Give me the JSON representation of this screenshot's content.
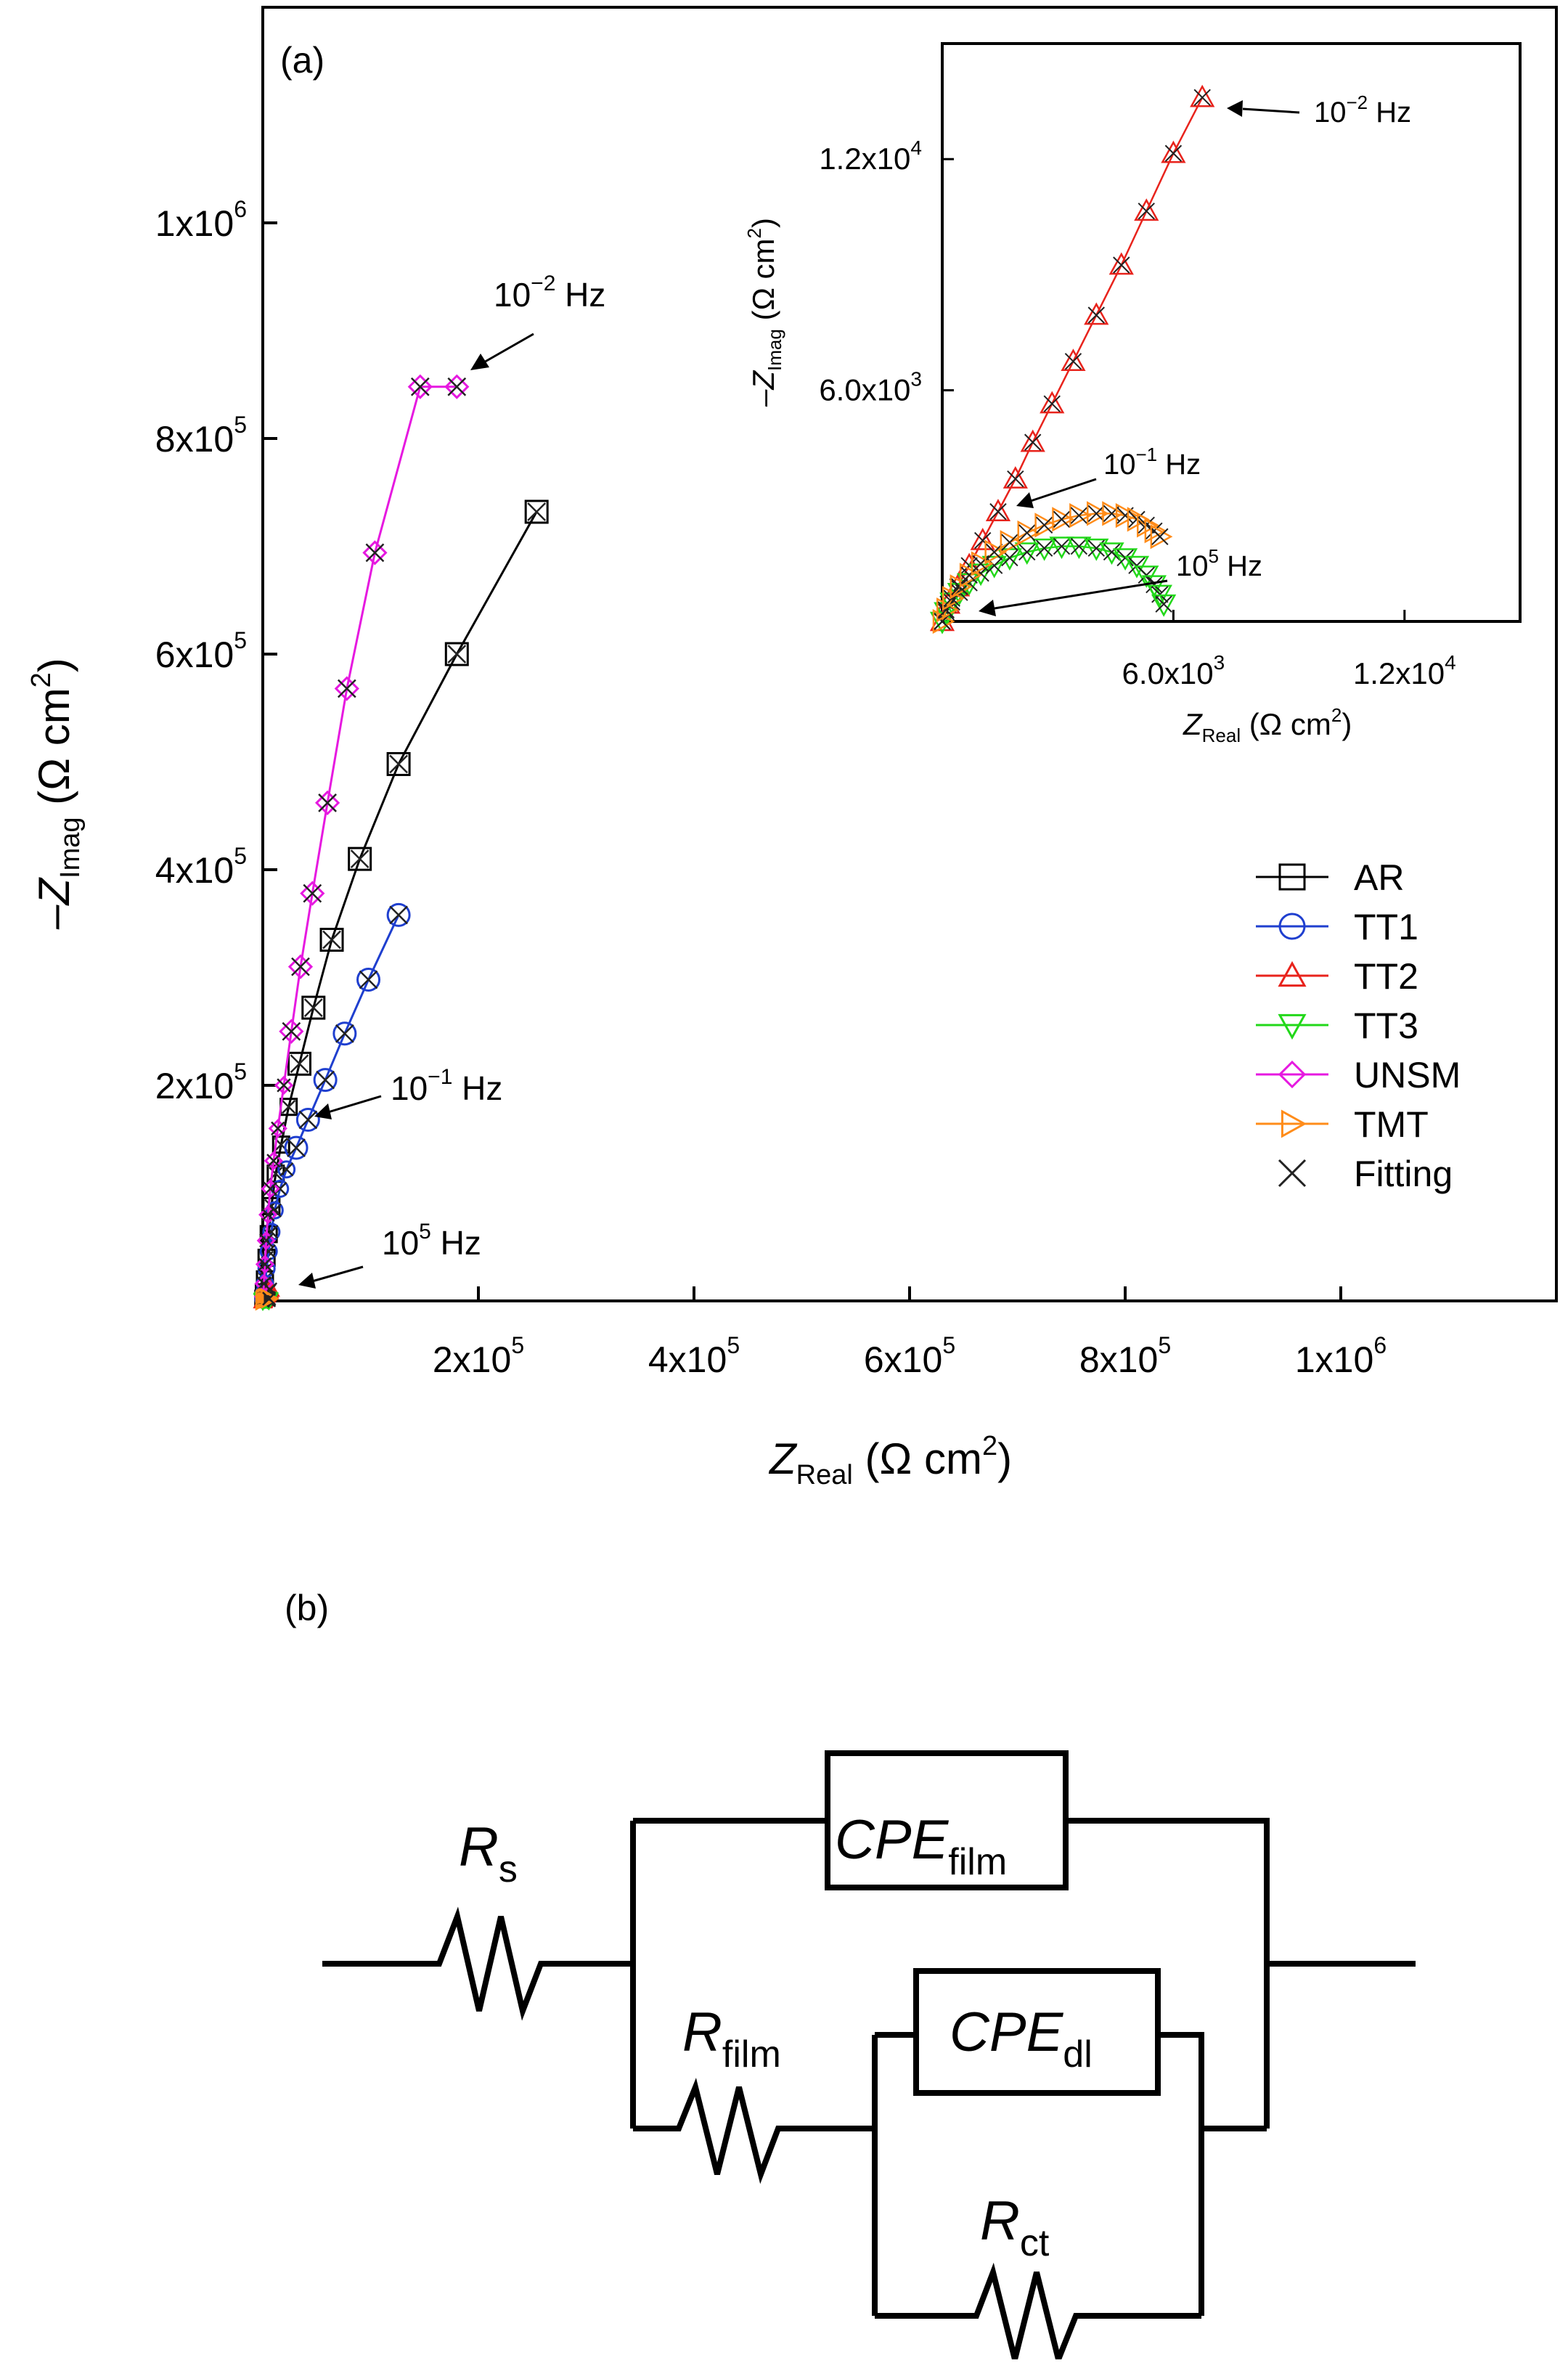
{
  "panel_a_label": "(a)",
  "panel_b_label": "(b)",
  "chart_data": [
    {
      "type": "scatter",
      "name": "main",
      "xlabel": {
        "main": "Z",
        "sub": "Real",
        "unit": " (Ω cm",
        "sup": "2",
        "close": ")"
      },
      "ylabel": {
        "main": "–Z",
        "sub": "Imag",
        "unit": " (Ω cm",
        "sup": "2",
        "close": ")"
      },
      "xlim": [
        0,
        1200000
      ],
      "ylim": [
        0,
        1200000
      ],
      "x_ticks": [
        {
          "value": 200000,
          "mant": "2x10",
          "exp": "5"
        },
        {
          "value": 400000,
          "mant": "4x10",
          "exp": "5"
        },
        {
          "value": 600000,
          "mant": "6x10",
          "exp": "5"
        },
        {
          "value": 800000,
          "mant": "8x10",
          "exp": "5"
        },
        {
          "value": 1000000,
          "mant": "1x10",
          "exp": "6"
        }
      ],
      "y_ticks": [
        {
          "value": 200000,
          "mant": "2x10",
          "exp": "5"
        },
        {
          "value": 400000,
          "mant": "4x10",
          "exp": "5"
        },
        {
          "value": 600000,
          "mant": "6x10",
          "exp": "5"
        },
        {
          "value": 800000,
          "mant": "8x10",
          "exp": "5"
        },
        {
          "value": 1000000,
          "mant": "1x10",
          "exp": "6"
        }
      ],
      "series": [
        {
          "name": "AR",
          "color": "#000000",
          "marker": "square",
          "x": [
            500,
            1000,
            2000,
            3500,
            5500,
            8000,
            12000,
            17000,
            24000,
            34000,
            47000,
            64000,
            90000,
            126000,
            180000,
            254000
          ],
          "y": [
            2000,
            8000,
            20000,
            40000,
            62000,
            88000,
            118000,
            145000,
            180000,
            220000,
            272000,
            335000,
            410000,
            498000,
            600000,
            732000
          ]
        },
        {
          "name": "TT1",
          "color": "#1f3fcf",
          "marker": "circle",
          "x": [
            500,
            1000,
            2000,
            3500,
            5500,
            8000,
            11000,
            16000,
            22000,
            31000,
            42000,
            58000,
            76000,
            98000,
            126000
          ],
          "y": [
            2000,
            7000,
            16000,
            30000,
            46000,
            64000,
            84000,
            104000,
            122000,
            142000,
            168000,
            205000,
            248000,
            298000,
            358000
          ]
        },
        {
          "name": "TT2",
          "color": "#e8231c",
          "marker": "triangle-up",
          "x": [
            0,
            200,
            500,
            900,
            1400,
            2000,
            2600,
            3300,
            4100,
            5000,
            6000,
            7000
          ],
          "y": [
            0,
            300,
            800,
            1500,
            2300,
            3300,
            4300,
            5400,
            6600,
            7900,
            9300,
            10700
          ]
        },
        {
          "name": "TT3",
          "color": "#22d81a",
          "marker": "triangle-down",
          "x": [
            0,
            300,
            800,
            1500,
            2400,
            3400,
            4400,
            5100,
            5500,
            5700
          ],
          "y": [
            0,
            600,
            1200,
            1700,
            1900,
            1800,
            1600,
            1300,
            1000,
            600
          ]
        },
        {
          "name": "UNSM",
          "color": "#e619e0",
          "marker": "diamond",
          "x": [
            500,
            1000,
            2000,
            3200,
            4800,
            7000,
            10000,
            14000,
            19500,
            26500,
            35000,
            46000,
            60000,
            78000,
            104000,
            146000,
            180000
          ],
          "y": [
            4000,
            16000,
            34000,
            56000,
            80000,
            104000,
            130000,
            160000,
            200000,
            250000,
            310000,
            378000,
            462000,
            568000,
            694000,
            848000,
            848000
          ]
        },
        {
          "name": "TMT",
          "color": "#ff8c1a",
          "marker": "triangle-right",
          "x": [
            0,
            200,
            600,
            1200,
            2000,
            3000,
            4000,
            5000,
            5600,
            5900
          ],
          "y": [
            0,
            700,
            1400,
            2100,
            2600,
            2900,
            2900,
            2700,
            2400,
            2100
          ]
        },
        {
          "name": "Fitting",
          "color": "#000000",
          "marker": "x"
        }
      ],
      "annotations": [
        {
          "base": "10",
          "exp": "−2",
          "unit": " Hz"
        },
        {
          "base": "10",
          "exp": "−1",
          "unit": " Hz"
        },
        {
          "base": "10",
          "exp": "5",
          "unit": " Hz"
        }
      ]
    },
    {
      "type": "scatter",
      "name": "inset",
      "xlabel": {
        "main": "Z",
        "sub": "Real",
        "unit": " (Ω cm",
        "sup": "2",
        "close": ")"
      },
      "ylabel": {
        "main": "–Z",
        "sub": "Imag",
        "unit": " (Ω cm",
        "sup": "2",
        "close": ")"
      },
      "xlim": [
        0,
        15000
      ],
      "ylim": [
        0,
        15000
      ],
      "x_ticks": [
        {
          "value": 6000,
          "mant": "6.0x10",
          "exp": "3"
        },
        {
          "value": 12000,
          "mant": "1.2x10",
          "exp": "4"
        }
      ],
      "y_ticks": [
        {
          "value": 6000,
          "mant": "6.0x10",
          "exp": "3"
        },
        {
          "value": 12000,
          "mant": "1.2x10",
          "exp": "4"
        }
      ],
      "series": [
        {
          "name": "TT2",
          "color": "#e8231c",
          "marker": "triangle-up",
          "x": [
            0,
            150,
            400,
            700,
            1050,
            1450,
            1900,
            2350,
            2850,
            3400,
            4000,
            4650,
            5300,
            6000,
            6750
          ],
          "y": [
            0,
            450,
            900,
            1450,
            2100,
            2850,
            3700,
            4650,
            5650,
            6750,
            7950,
            9250,
            10650,
            12150,
            13600
          ]
        },
        {
          "name": "TT3",
          "color": "#22d81a",
          "marker": "triangle-down",
          "x": [
            0,
            100,
            250,
            450,
            700,
            1000,
            1350,
            1750,
            2200,
            2650,
            3100,
            3550,
            4000,
            4400,
            4750,
            5050,
            5300,
            5500,
            5650,
            5750
          ],
          "y": [
            0,
            250,
            500,
            750,
            1000,
            1250,
            1450,
            1650,
            1800,
            1900,
            1950,
            1950,
            1900,
            1800,
            1650,
            1450,
            1200,
            950,
            700,
            450
          ]
        },
        {
          "name": "TMT",
          "color": "#ff8c1a",
          "marker": "triangle-right",
          "x": [
            0,
            100,
            250,
            450,
            700,
            1000,
            1350,
            1750,
            2200,
            2650,
            3100,
            3550,
            4000,
            4400,
            4750,
            5050,
            5300,
            5500,
            5650
          ],
          "y": [
            0,
            300,
            600,
            900,
            1200,
            1500,
            1800,
            2050,
            2300,
            2500,
            2650,
            2750,
            2800,
            2800,
            2750,
            2650,
            2500,
            2350,
            2200
          ]
        }
      ],
      "annotations": [
        {
          "base": "10",
          "exp": "−2",
          "unit": " Hz"
        },
        {
          "base": "10",
          "exp": "−1",
          "unit": " Hz"
        },
        {
          "base": "10",
          "exp": "5",
          "unit": " Hz"
        }
      ]
    }
  ],
  "circuit": {
    "rs": {
      "main": "R",
      "sub": "s"
    },
    "cpe_film": {
      "main": "CPE",
      "sub": "film"
    },
    "r_film": {
      "main": "R",
      "sub": "film"
    },
    "cpe_dl": {
      "main": "CPE",
      "sub": "dl"
    },
    "r_ct": {
      "main": "R",
      "sub": "ct"
    }
  }
}
